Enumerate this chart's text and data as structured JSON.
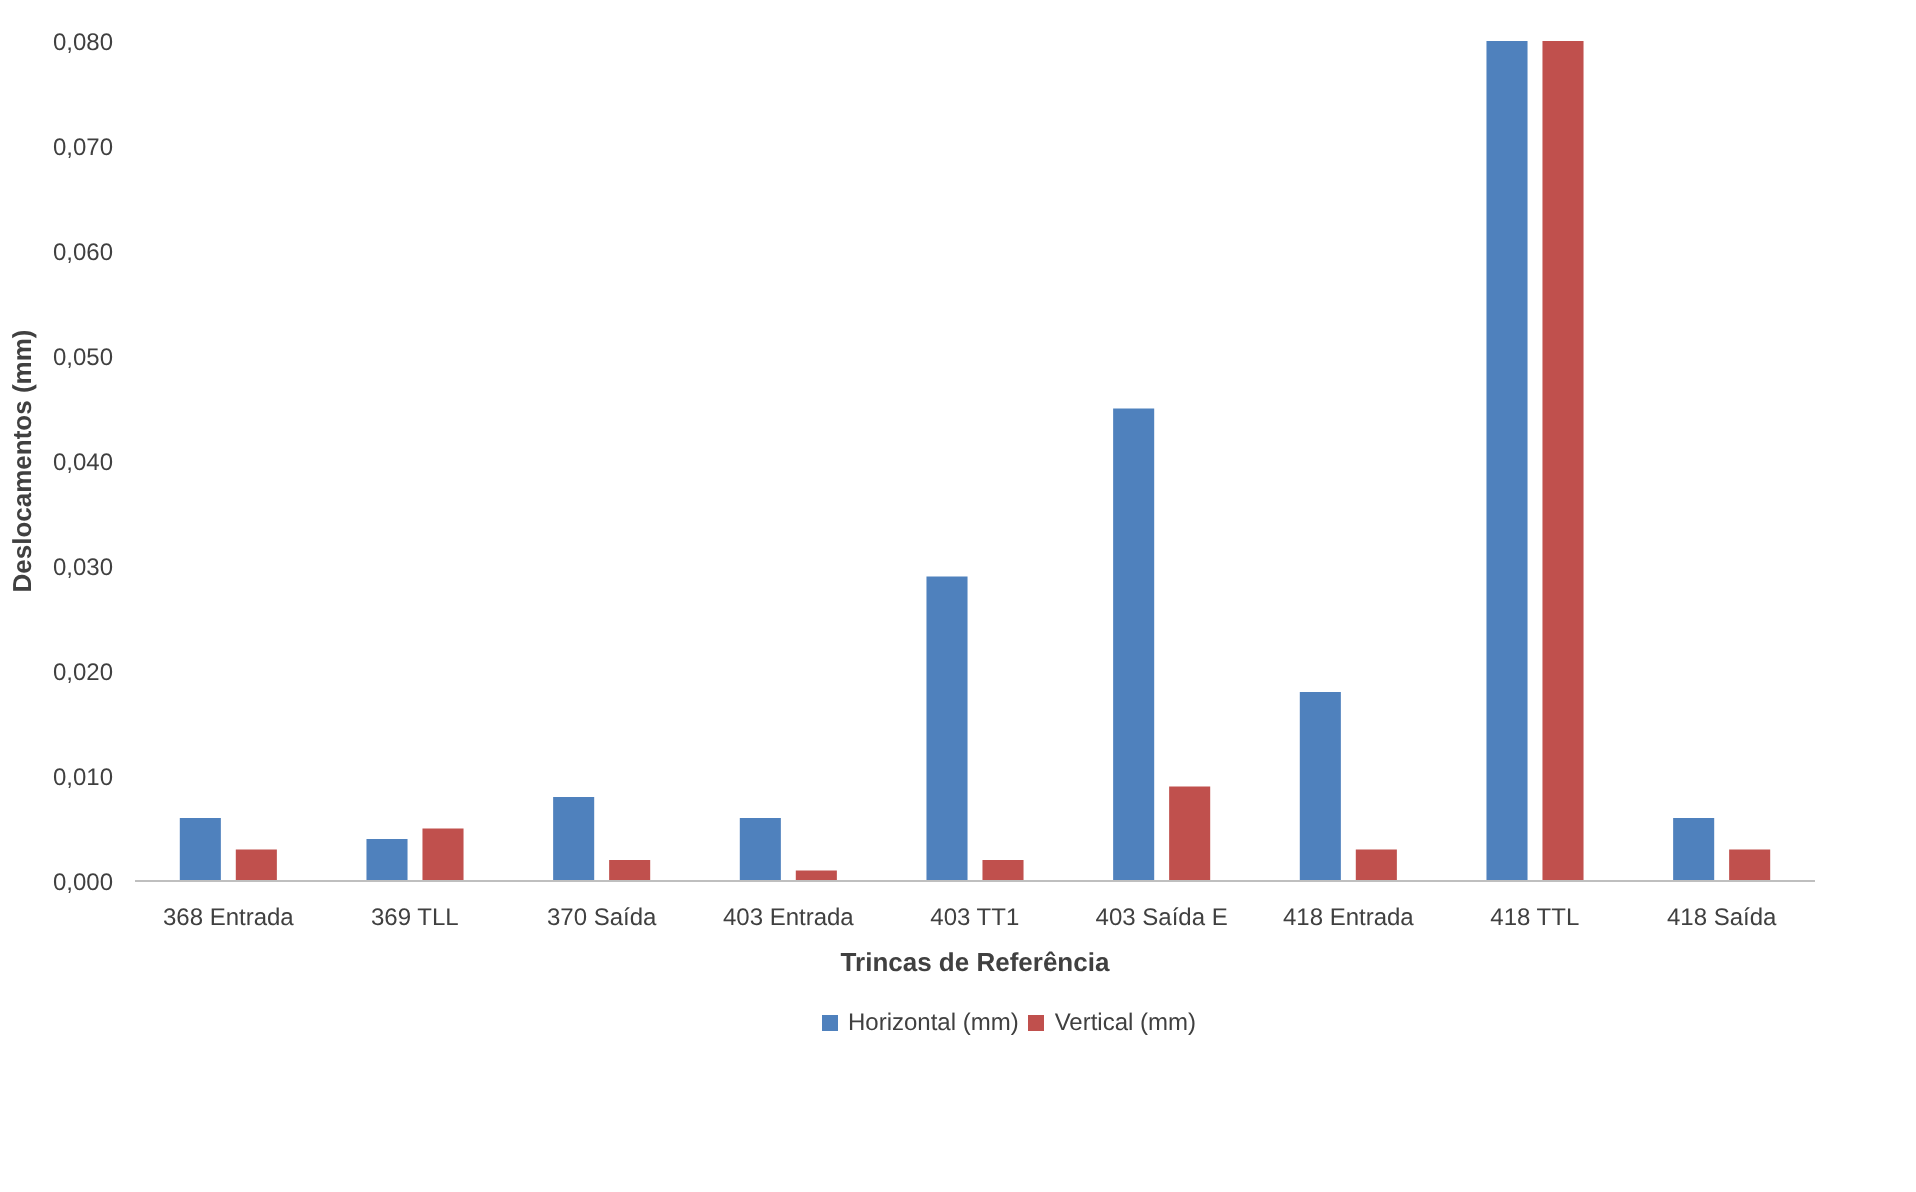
{
  "chart_data": {
    "type": "bar",
    "xlabel": "Trincas de Referência",
    "ylabel": "Deslocamentos (mm)",
    "categories": [
      "368 Entrada",
      "369 TLL",
      "370 Saída",
      "403 Entrada",
      "403 TT1",
      "403 Saída E",
      "418 Entrada",
      "418 TTL",
      "418 Saída"
    ],
    "series": [
      {
        "name": "Horizontal (mm)",
        "color": "#4f81bd",
        "values": [
          0.006,
          0.004,
          0.008,
          0.006,
          0.029,
          0.045,
          0.018,
          0.08,
          0.006
        ]
      },
      {
        "name": "Vertical (mm)",
        "color": "#c0504d",
        "values": [
          0.003,
          0.005,
          0.002,
          0.001,
          0.002,
          0.009,
          0.003,
          0.08,
          0.003
        ]
      }
    ],
    "ylim": [
      0,
      0.08
    ],
    "yticks": [
      {
        "value": 0,
        "label": "0,000"
      },
      {
        "value": 0.01,
        "label": "0,010"
      },
      {
        "value": 0.02,
        "label": "0,020"
      },
      {
        "value": 0.03,
        "label": "0,030"
      },
      {
        "value": 0.04,
        "label": "0,040"
      },
      {
        "value": 0.05,
        "label": "0,050"
      },
      {
        "value": 0.06,
        "label": "0,060"
      },
      {
        "value": 0.07,
        "label": "0,070"
      },
      {
        "value": 0.08,
        "label": "0,080"
      }
    ],
    "grid": false,
    "legend": "bottom"
  }
}
